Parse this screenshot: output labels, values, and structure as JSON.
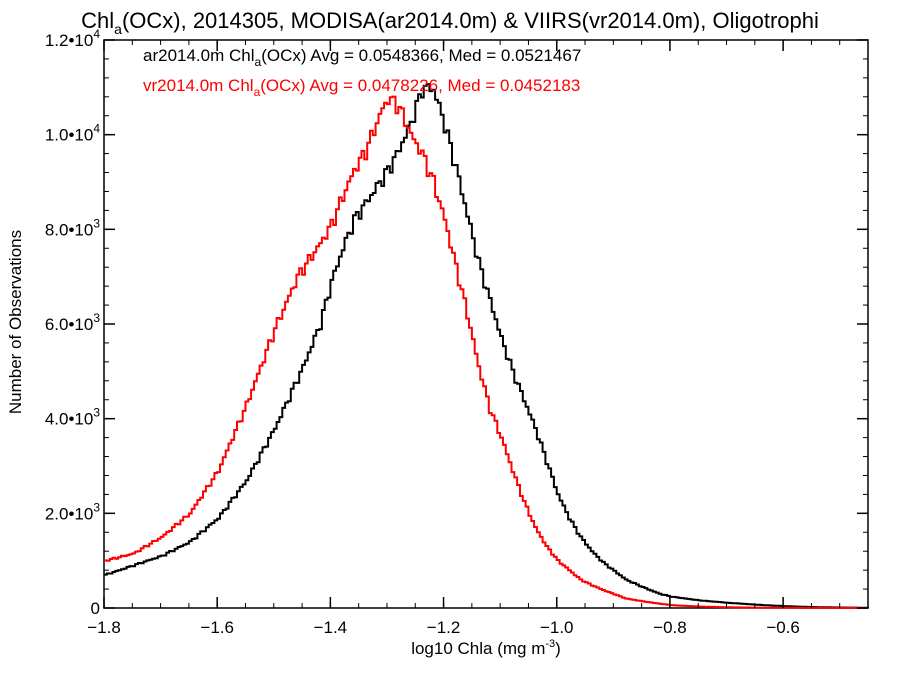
{
  "chart_data": {
    "type": "line",
    "title_pre": "Chl",
    "title_sub": "a",
    "title_post": "(OCx), 2014305, MODISA(ar2014.0m) & VIIRS(vr2014.0m), Oligotrophi",
    "xlabel_pre": "log10 Chla (mg m",
    "xlabel_sup": "-3",
    "xlabel_post": ")",
    "ylabel": "Number of Observations",
    "xlim": [
      -1.8,
      -0.45
    ],
    "ylim": [
      0,
      12000
    ],
    "xticks": [
      {
        "v": -1.8,
        "label": "−1.8"
      },
      {
        "v": -1.6,
        "label": "−1.6"
      },
      {
        "v": -1.4,
        "label": "−1.4"
      },
      {
        "v": -1.2,
        "label": "−1.2"
      },
      {
        "v": -1.0,
        "label": "−1.0"
      },
      {
        "v": -0.8,
        "label": "−0.8"
      },
      {
        "v": -0.6,
        "label": "−0.6"
      }
    ],
    "yticks": [
      {
        "v": 0,
        "mant": "0",
        "exp": ""
      },
      {
        "v": 2000,
        "mant": "2.0•10",
        "exp": "3"
      },
      {
        "v": 4000,
        "mant": "4.0•10",
        "exp": "3"
      },
      {
        "v": 6000,
        "mant": "6.0•10",
        "exp": "3"
      },
      {
        "v": 8000,
        "mant": "8.0•10",
        "exp": "3"
      },
      {
        "v": 10000,
        "mant": "1.0•10",
        "exp": "4"
      },
      {
        "v": 12000,
        "mant": "1.2•10",
        "exp": "4"
      }
    ],
    "annotations": [
      {
        "color": "#000000",
        "pre": "ar2014.0m Chl",
        "sub": "a",
        "post": "(OCx) Avg = 0.0548366, Med = 0.0521467"
      },
      {
        "color": "#ff0000",
        "pre": "vr2014.0m Chl",
        "sub": "a",
        "post": "(OCx) Avg = 0.0478226, Med = 0.0452183"
      }
    ],
    "series": [
      {
        "color": "#000000",
        "x": [
          -1.8,
          -1.75,
          -1.7,
          -1.65,
          -1.6,
          -1.55,
          -1.5,
          -1.45,
          -1.42,
          -1.4,
          -1.38,
          -1.36,
          -1.34,
          -1.32,
          -1.3,
          -1.28,
          -1.26,
          -1.25,
          -1.24,
          -1.23,
          -1.22,
          -1.21,
          -1.2,
          -1.18,
          -1.16,
          -1.14,
          -1.12,
          -1.1,
          -1.08,
          -1.06,
          -1.04,
          -1.02,
          -1.0,
          -0.98,
          -0.96,
          -0.94,
          -0.92,
          -0.9,
          -0.88,
          -0.85,
          -0.82,
          -0.8,
          -0.75,
          -0.7,
          -0.65,
          -0.6,
          -0.55,
          -0.5,
          -0.45
        ],
        "y": [
          700,
          900,
          1100,
          1400,
          1900,
          2700,
          3800,
          5100,
          6000,
          6900,
          7600,
          8200,
          8550,
          8900,
          9250,
          9700,
          10250,
          10600,
          10950,
          11000,
          10950,
          10600,
          10200,
          9300,
          8300,
          7300,
          6500,
          5700,
          5000,
          4400,
          3800,
          3100,
          2400,
          1900,
          1500,
          1200,
          960,
          780,
          600,
          440,
          300,
          240,
          160,
          110,
          70,
          40,
          20,
          10,
          5
        ]
      },
      {
        "color": "#ff0000",
        "x": [
          -1.8,
          -1.75,
          -1.7,
          -1.65,
          -1.6,
          -1.55,
          -1.5,
          -1.46,
          -1.42,
          -1.4,
          -1.38,
          -1.36,
          -1.34,
          -1.32,
          -1.31,
          -1.3,
          -1.29,
          -1.28,
          -1.27,
          -1.26,
          -1.24,
          -1.22,
          -1.2,
          -1.18,
          -1.16,
          -1.14,
          -1.12,
          -1.1,
          -1.08,
          -1.06,
          -1.04,
          -1.02,
          -1.0,
          -0.98,
          -0.96,
          -0.94,
          -0.92,
          -0.9,
          -0.88,
          -0.85,
          -0.82,
          -0.8,
          -0.75,
          -0.7,
          -0.65,
          -0.6,
          -0.55,
          -0.5,
          -0.45
        ],
        "y": [
          1000,
          1150,
          1500,
          2000,
          2900,
          4300,
          5900,
          7000,
          7700,
          8100,
          8700,
          9250,
          9650,
          10250,
          10550,
          10750,
          10700,
          10550,
          10300,
          10000,
          9600,
          9000,
          8200,
          7200,
          6200,
          5100,
          4200,
          3600,
          2900,
          2250,
          1700,
          1300,
          1000,
          800,
          600,
          480,
          380,
          290,
          200,
          140,
          90,
          60,
          30,
          15,
          8,
          4,
          2,
          1,
          0
        ]
      }
    ]
  }
}
